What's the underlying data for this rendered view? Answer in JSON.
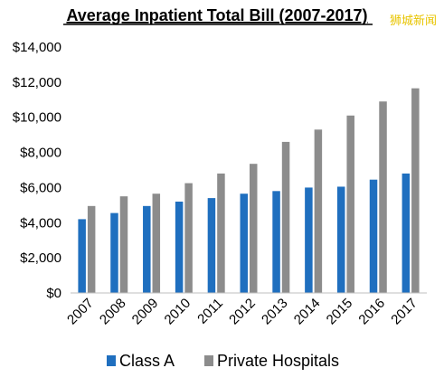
{
  "watermark": "狮城新闻",
  "chart_data": {
    "type": "bar",
    "title": "Average Inpatient Total Bill (2007-2017)",
    "xlabel": "",
    "ylabel": "",
    "ylim": [
      0,
      14000
    ],
    "yticks": [
      0,
      2000,
      4000,
      6000,
      8000,
      10000,
      12000,
      14000
    ],
    "ytick_labels": [
      "$0",
      "$2,000",
      "$4,000",
      "$6,000",
      "$8,000",
      "$10,000",
      "$12,000",
      "$14,000"
    ],
    "grid": false,
    "legend_position": "bottom",
    "categories": [
      "2007",
      "2008",
      "2009",
      "2010",
      "2011",
      "2012",
      "2013",
      "2014",
      "2015",
      "2016",
      "2017"
    ],
    "series": [
      {
        "name": "Class A",
        "color": "#1f6fbf",
        "values": [
          4200,
          4550,
          4950,
          5200,
          5400,
          5650,
          5800,
          6000,
          6050,
          6450,
          6800
        ]
      },
      {
        "name": "Private Hospitals",
        "color": "#8c8c8c",
        "values": [
          4950,
          5500,
          5650,
          6250,
          6800,
          7350,
          8600,
          9300,
          10100,
          10900,
          11650
        ]
      }
    ]
  }
}
